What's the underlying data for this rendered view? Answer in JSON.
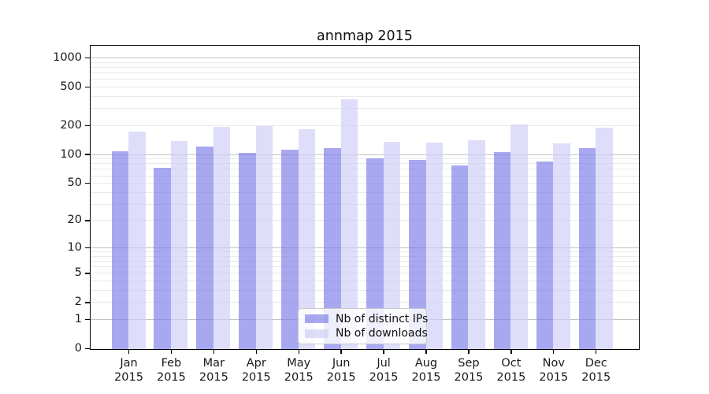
{
  "figure": {
    "title": "annmap 2015"
  },
  "chart_data": {
    "type": "bar",
    "title": "annmap 2015",
    "categories": [
      "Jan 2015",
      "Feb 2015",
      "Mar 2015",
      "Apr 2015",
      "May 2015",
      "Jun 2015",
      "Jul 2015",
      "Aug 2015",
      "Sep 2015",
      "Oct 2015",
      "Nov 2015",
      "Dec 2015"
    ],
    "series": [
      {
        "name": "Nb of distinct IPs",
        "color": "rgba(123,123,232,0.66)",
        "values": [
          110,
          73,
          123,
          106,
          114,
          117,
          92,
          88,
          77,
          108,
          86,
          117
        ]
      },
      {
        "name": "Nb of downloads",
        "color": "rgba(205,205,248,0.66)",
        "values": [
          174,
          140,
          197,
          200,
          186,
          380,
          138,
          135,
          142,
          206,
          131,
          191
        ]
      }
    ],
    "y_axis": {
      "scale": "log10(1+y)",
      "tick_labels": [
        "1000",
        "500",
        "200",
        "100",
        "50",
        "20",
        "10",
        "5",
        "2",
        "1",
        "0"
      ],
      "tick_values": [
        1000,
        500,
        200,
        100,
        50,
        20,
        10,
        5,
        2,
        1,
        0
      ],
      "max": 1327
    },
    "x_axis": {
      "year_line": "2015"
    },
    "legend": {
      "position": "lower center"
    },
    "grid": {
      "minor_color": "#e9e9e9",
      "major_color": "#c3c3c3",
      "major_at": [
        1,
        10,
        100,
        1000
      ]
    }
  }
}
